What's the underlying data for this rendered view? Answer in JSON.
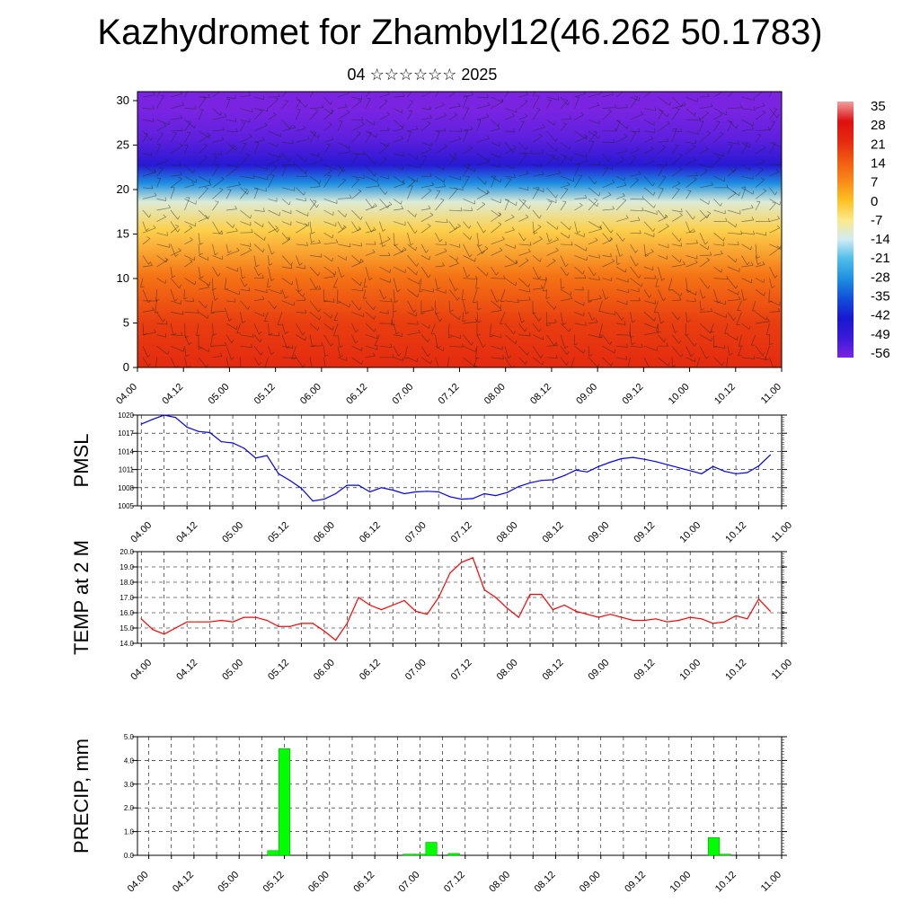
{
  "title": "Kazhydromet for Zhambyl12(46.262 50.1783)",
  "subtitle": "04 ☆☆☆☆☆☆ 2025",
  "colors": {
    "pmsl": "#0000ff",
    "temp": "#ff0000",
    "precip": "#00ff00",
    "precip_edge": "#009900"
  },
  "chart_data": [
    {
      "type": "heatmap",
      "title": "",
      "xlabel": "",
      "ylabel": "",
      "ylim": [
        0,
        30
      ],
      "y_ticks": [
        "0",
        "5",
        "10",
        "15",
        "20",
        "25",
        "30"
      ],
      "x_ticks": [
        "04.00",
        "04.12",
        "05.00",
        "05.12",
        "06.00",
        "06.12",
        "07.00",
        "07.12",
        "08.00",
        "08.12",
        "09.00",
        "09.12",
        "10.00",
        "10.12",
        "11.00"
      ],
      "colorbar_labels": [
        "35",
        "28",
        "21",
        "14",
        "7",
        "0",
        "-7",
        "-14",
        "-21",
        "-28",
        "-35",
        "-42",
        "-49",
        "-56"
      ],
      "colorbar_colors": [
        "#f0a0a0",
        "#dd1010",
        "#e42a10",
        "#f05a10",
        "#f88818",
        "#fcc020",
        "#fde88a",
        "#d0ecf4",
        "#4dbde9",
        "#1e8fe0",
        "#1250d8",
        "#1818d0",
        "#3a1ad8",
        "#7a24e2"
      ],
      "temperature_by_height": {
        "height": [
          0,
          5,
          10,
          15,
          18,
          20,
          22,
          25,
          28,
          30
        ],
        "value": [
          21,
          18,
          10,
          -3,
          -12,
          -28,
          -45,
          -53,
          -56,
          -58
        ]
      },
      "overlay": "wind barbs"
    },
    {
      "type": "line",
      "ylabel": "PMSL",
      "ylim": [
        1005,
        1020
      ],
      "y_ticks": [
        "1005",
        "1008",
        "1011",
        "1014",
        "1017",
        "1020"
      ],
      "x_ticks": [
        "04.00",
        "04.12",
        "05.00",
        "05.12",
        "06.00",
        "06.12",
        "07.00",
        "07.12",
        "08.00",
        "08.12",
        "09.00",
        "09.12",
        "10.00",
        "10.12",
        "11.00"
      ],
      "xlim": [
        -1,
        168
      ],
      "x": [
        0,
        3,
        6,
        9,
        12,
        15,
        18,
        21,
        24,
        27,
        30,
        33,
        36,
        39,
        42,
        45,
        48,
        51,
        54,
        57,
        60,
        63,
        66,
        69,
        72,
        75,
        78,
        81,
        84,
        87,
        90,
        93,
        96,
        99,
        102,
        105,
        108,
        111,
        114,
        117,
        120,
        123,
        126,
        129,
        132,
        135,
        138,
        141,
        144,
        147,
        150,
        153,
        156,
        159,
        162,
        165
      ],
      "values": [
        1018.5,
        1019.3,
        1020.0,
        1019.6,
        1018.0,
        1017.3,
        1017.1,
        1015.6,
        1015.4,
        1014.5,
        1012.9,
        1013.3,
        1010.3,
        1009.2,
        1007.9,
        1005.8,
        1006.1,
        1007.0,
        1008.4,
        1008.4,
        1007.3,
        1008.0,
        1007.6,
        1007.0,
        1007.3,
        1007.4,
        1007.3,
        1006.5,
        1006.1,
        1006.2,
        1007.0,
        1006.7,
        1007.2,
        1008.2,
        1008.8,
        1009.2,
        1009.3,
        1010.0,
        1010.9,
        1010.6,
        1011.5,
        1012.2,
        1012.8,
        1013.0,
        1012.7,
        1012.3,
        1011.8,
        1011.3,
        1010.8,
        1010.3,
        1011.5,
        1010.7,
        1010.3,
        1010.5,
        1011.6,
        1013.4
      ]
    },
    {
      "type": "line",
      "ylabel": "TEMP at 2 M",
      "ylim": [
        14.0,
        20.0
      ],
      "y_ticks": [
        "14.0",
        "15.0",
        "16.0",
        "17.0",
        "18.0",
        "19.0",
        "20.0"
      ],
      "x_ticks": [
        "04.00",
        "04.12",
        "05.00",
        "05.12",
        "06.00",
        "06.12",
        "07.00",
        "07.12",
        "08.00",
        "08.12",
        "09.00",
        "09.12",
        "10.00",
        "10.12",
        "11.00"
      ],
      "xlim": [
        -1,
        168
      ],
      "x": [
        0,
        3,
        6,
        9,
        12,
        15,
        18,
        21,
        24,
        27,
        30,
        33,
        36,
        39,
        42,
        45,
        48,
        51,
        54,
        57,
        60,
        63,
        66,
        69,
        72,
        75,
        78,
        81,
        84,
        87,
        90,
        93,
        96,
        99,
        102,
        105,
        108,
        111,
        114,
        117,
        120,
        123,
        126,
        129,
        132,
        135,
        138,
        141,
        144,
        147,
        150,
        153,
        156,
        159,
        162,
        165
      ],
      "values": [
        15.6,
        14.9,
        14.6,
        15.0,
        15.4,
        15.4,
        15.4,
        15.5,
        15.4,
        15.7,
        15.7,
        15.5,
        15.1,
        15.1,
        15.3,
        15.3,
        14.8,
        14.2,
        15.3,
        17.0,
        16.5,
        16.2,
        16.5,
        16.8,
        16.1,
        15.9,
        17.0,
        18.6,
        19.3,
        19.6,
        17.5,
        17.0,
        16.3,
        15.7,
        17.2,
        17.2,
        16.2,
        16.5,
        16.1,
        15.9,
        15.7,
        15.9,
        15.7,
        15.5,
        15.5,
        15.6,
        15.4,
        15.5,
        15.7,
        15.6,
        15.3,
        15.4,
        15.8,
        15.6,
        16.9,
        16.1
      ]
    },
    {
      "type": "bar",
      "ylabel": "PRECIP, mm",
      "ylim": [
        0.0,
        5.0
      ],
      "y_ticks": [
        "0.0",
        "1.0",
        "2.0",
        "3.0",
        "4.0",
        "5.0"
      ],
      "x_ticks": [
        "04.00",
        "04.12",
        "05.00",
        "05.12",
        "06.00",
        "06.12",
        "07.00",
        "07.12",
        "08.00",
        "08.12",
        "09.00",
        "09.12",
        "10.00",
        "10.12",
        "11.00"
      ],
      "xlim": [
        -3,
        168
      ],
      "x": [
        33,
        36,
        69,
        72,
        75,
        81,
        150,
        153
      ],
      "values": [
        0.2,
        4.5,
        0.05,
        0.05,
        0.55,
        0.08,
        0.75,
        0.05
      ]
    }
  ]
}
